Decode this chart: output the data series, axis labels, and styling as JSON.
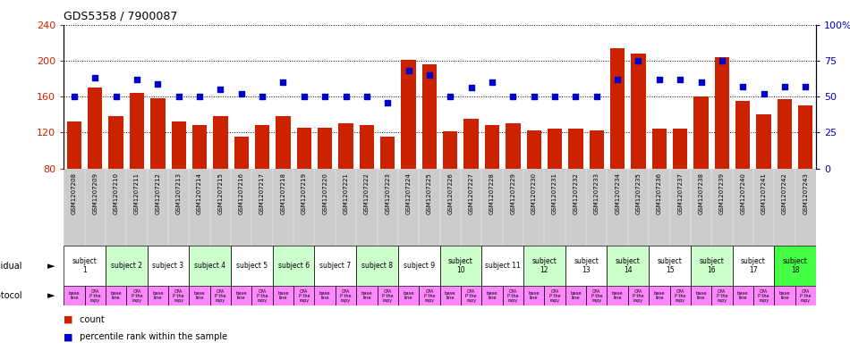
{
  "title": "GDS5358 / 7900087",
  "samples": [
    "GSM1207208",
    "GSM1207209",
    "GSM1207210",
    "GSM1207211",
    "GSM1207212",
    "GSM1207213",
    "GSM1207214",
    "GSM1207215",
    "GSM1207216",
    "GSM1207217",
    "GSM1207218",
    "GSM1207219",
    "GSM1207220",
    "GSM1207221",
    "GSM1207222",
    "GSM1207223",
    "GSM1207224",
    "GSM1207225",
    "GSM1207226",
    "GSM1207227",
    "GSM1207228",
    "GSM1207229",
    "GSM1207230",
    "GSM1207231",
    "GSM1207232",
    "GSM1207233",
    "GSM1207234",
    "GSM1207235",
    "GSM1207236",
    "GSM1207237",
    "GSM1207238",
    "GSM1207239",
    "GSM1207240",
    "GSM1207241",
    "GSM1207242",
    "GSM1207243"
  ],
  "counts": [
    132,
    170,
    138,
    164,
    158,
    132,
    128,
    138,
    115,
    128,
    138,
    125,
    125,
    130,
    128,
    115,
    201,
    196,
    121,
    135,
    128,
    130,
    122,
    124,
    124,
    122,
    214,
    208,
    124,
    124,
    160,
    204,
    155,
    140,
    157,
    150
  ],
  "percentile": [
    50,
    63,
    50,
    62,
    59,
    50,
    50,
    55,
    52,
    50,
    60,
    50,
    50,
    50,
    50,
    46,
    68,
    65,
    50,
    56,
    60,
    50,
    50,
    50,
    50,
    50,
    62,
    75,
    62,
    62,
    60,
    75,
    57,
    52,
    57,
    57
  ],
  "ylim_left": [
    80,
    240
  ],
  "ylim_right": [
    0,
    100
  ],
  "yticks_left": [
    80,
    120,
    160,
    200,
    240
  ],
  "yticks_right": [
    0,
    25,
    50,
    75,
    100
  ],
  "ytick_labels_right": [
    "0",
    "25",
    "50",
    "75",
    "100%"
  ],
  "bar_color": "#cc2200",
  "dot_color": "#0000cc",
  "xtick_bg_color": "#cccccc",
  "subjects": [
    {
      "label": "subject\n1",
      "start": 0,
      "end": 2,
      "color": "#ffffff"
    },
    {
      "label": "subject 2",
      "start": 2,
      "end": 4,
      "color": "#ccffcc"
    },
    {
      "label": "subject 3",
      "start": 4,
      "end": 6,
      "color": "#ffffff"
    },
    {
      "label": "subject 4",
      "start": 6,
      "end": 8,
      "color": "#ccffcc"
    },
    {
      "label": "subject 5",
      "start": 8,
      "end": 10,
      "color": "#ffffff"
    },
    {
      "label": "subject 6",
      "start": 10,
      "end": 12,
      "color": "#ccffcc"
    },
    {
      "label": "subject 7",
      "start": 12,
      "end": 14,
      "color": "#ffffff"
    },
    {
      "label": "subject 8",
      "start": 14,
      "end": 16,
      "color": "#ccffcc"
    },
    {
      "label": "subject 9",
      "start": 16,
      "end": 18,
      "color": "#ffffff"
    },
    {
      "label": "subject\n10",
      "start": 18,
      "end": 20,
      "color": "#ccffcc"
    },
    {
      "label": "subject 11",
      "start": 20,
      "end": 22,
      "color": "#ffffff"
    },
    {
      "label": "subject\n12",
      "start": 22,
      "end": 24,
      "color": "#ccffcc"
    },
    {
      "label": "subject\n13",
      "start": 24,
      "end": 26,
      "color": "#ffffff"
    },
    {
      "label": "subject\n14",
      "start": 26,
      "end": 28,
      "color": "#ccffcc"
    },
    {
      "label": "subject\n15",
      "start": 28,
      "end": 30,
      "color": "#ffffff"
    },
    {
      "label": "subject\n16",
      "start": 30,
      "end": 32,
      "color": "#ccffcc"
    },
    {
      "label": "subject\n17",
      "start": 32,
      "end": 34,
      "color": "#ffffff"
    },
    {
      "label": "subject\n18",
      "start": 34,
      "end": 36,
      "color": "#44ff44"
    }
  ],
  "protocol_color": "#ff88ff",
  "background_color": "#ffffff",
  "left_ylabel_color": "#cc2200",
  "right_ylabel_color": "#0000cc"
}
